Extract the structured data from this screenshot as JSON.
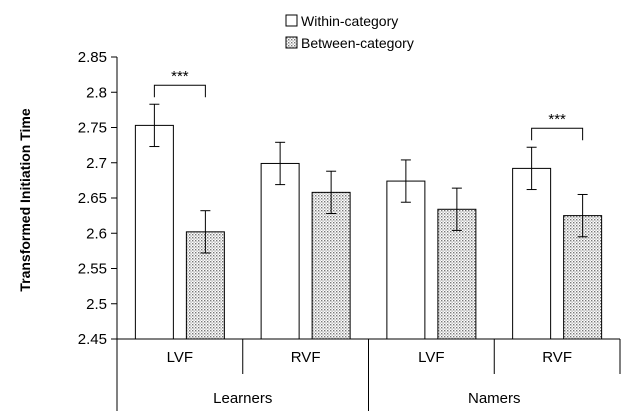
{
  "chart_data": {
    "type": "bar",
    "ylabel": "Transformed Initiation Time",
    "xlabel": "",
    "ylim": [
      2.45,
      2.85
    ],
    "yticks": [
      "2.45",
      "2.5",
      "2.55",
      "2.6",
      "2.65",
      "2.7",
      "2.75",
      "2.8",
      "2.85"
    ],
    "grid": false,
    "legend_position": "top-center",
    "groups": [
      {
        "label": "Learners",
        "categories": [
          "LVF",
          "RVF"
        ]
      },
      {
        "label": "Namers",
        "categories": [
          "LVF",
          "RVF"
        ]
      }
    ],
    "categories": [
      "LVF",
      "RVF",
      "LVF",
      "RVF"
    ],
    "series": [
      {
        "name": "Within-category",
        "values": [
          2.753,
          2.699,
          2.674,
          2.692
        ],
        "error": [
          0.03,
          0.03,
          0.03,
          0.03
        ],
        "fill": "white"
      },
      {
        "name": "Between-category",
        "values": [
          2.602,
          2.658,
          2.634,
          2.625
        ],
        "error": [
          0.03,
          0.03,
          0.03,
          0.03
        ],
        "fill": "dotted"
      }
    ],
    "annotations": [
      {
        "text": "***",
        "category_index": 0
      },
      {
        "text": "***",
        "category_index": 3
      }
    ]
  }
}
